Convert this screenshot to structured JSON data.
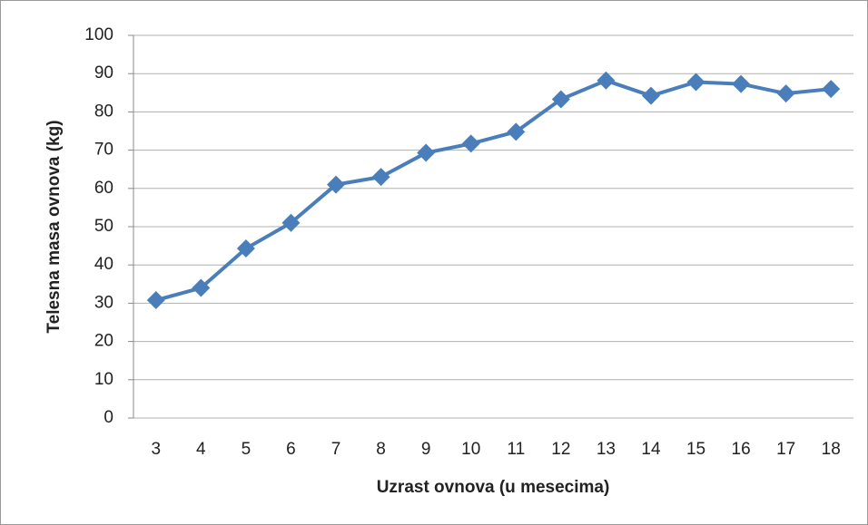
{
  "chart_data": {
    "type": "line",
    "xlabel": "Uzrast ovnova (u mesecima)",
    "ylabel": "Telesna masa ovnova (kg)",
    "categories": [
      "3",
      "4",
      "5",
      "6",
      "7",
      "8",
      "9",
      "10",
      "11",
      "12",
      "13",
      "14",
      "15",
      "16",
      "17",
      "18"
    ],
    "series": [
      {
        "color": "#4a7ebb",
        "values": [
          30.8,
          34,
          44.3,
          51,
          61,
          63,
          69.3,
          71.7,
          74.8,
          83.3,
          88.2,
          84.2,
          87.8,
          87.3,
          84.8,
          86
        ]
      }
    ],
    "ylim": [
      0,
      100
    ],
    "yticks": [
      0,
      10,
      20,
      30,
      40,
      50,
      60,
      70,
      80,
      90,
      100
    ],
    "grid": true
  }
}
